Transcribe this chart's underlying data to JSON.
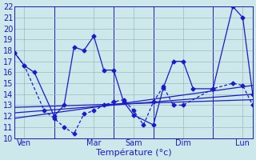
{
  "bg_color": "#cce8ea",
  "line_color": "#1a1acc",
  "grid_color": "#99bbbb",
  "xlabel": "Température (°c)",
  "ylim": [
    10,
    22
  ],
  "xlim": [
    0,
    48
  ],
  "yticks": [
    10,
    11,
    12,
    13,
    14,
    15,
    16,
    17,
    18,
    19,
    20,
    21,
    22
  ],
  "xtick_pos": [
    2,
    16,
    24,
    34,
    46
  ],
  "xtick_labels": [
    "Ven",
    "Mar",
    "Sam",
    "Dim",
    "Lun"
  ],
  "vlines": [
    8,
    20,
    28,
    40
  ],
  "line1_x": [
    0,
    2,
    4,
    8,
    10,
    12,
    14,
    16,
    18,
    20,
    22,
    24,
    28,
    30,
    32,
    34,
    36,
    40,
    44,
    46,
    48
  ],
  "line1_y": [
    17.8,
    16.6,
    16.0,
    12.0,
    13.0,
    18.3,
    18.0,
    19.3,
    16.2,
    16.2,
    13.3,
    12.1,
    11.2,
    14.6,
    17.0,
    17.0,
    14.5,
    14.5,
    22.0,
    21.0,
    14.0
  ],
  "line2_x": [
    0,
    2,
    6,
    8,
    10,
    12,
    14,
    16,
    18,
    20,
    22,
    24,
    26,
    28,
    30,
    32,
    34,
    40,
    44,
    46,
    48
  ],
  "line2_y": [
    17.8,
    16.6,
    12.5,
    11.8,
    11.0,
    10.4,
    12.2,
    12.5,
    13.0,
    13.3,
    13.5,
    12.5,
    11.2,
    13.3,
    14.7,
    13.0,
    13.0,
    14.5,
    15.0,
    14.8,
    13.0
  ],
  "trend1_x": [
    0,
    48
  ],
  "trend1_y": [
    11.8,
    14.8
  ],
  "trend2_x": [
    0,
    48
  ],
  "trend2_y": [
    12.3,
    14.0
  ],
  "trend3_x": [
    0,
    48
  ],
  "trend3_y": [
    12.8,
    13.5
  ]
}
